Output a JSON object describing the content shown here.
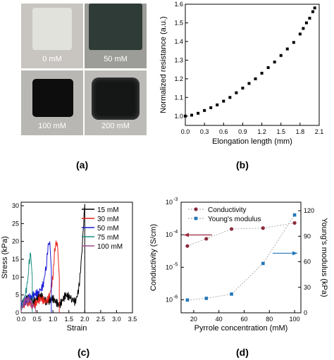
{
  "panels": {
    "a": {
      "label": "(a)",
      "photos": [
        {
          "caption": "0 mM",
          "bg": "#c8c5c1",
          "sample": "#e4e4e0"
        },
        {
          "caption": "50 mM",
          "bg": "#9c9d98",
          "sample": "#2f3b36"
        },
        {
          "caption": "100 mM",
          "bg": "#b9b7b3",
          "sample": "#0c0d0c"
        },
        {
          "caption": "200 mM",
          "bg": "#bdbbb7",
          "sample": "#151616"
        }
      ]
    },
    "b": {
      "label": "(b)"
    },
    "c": {
      "label": "(c)"
    },
    "d": {
      "label": "(d)"
    }
  },
  "chart_data": [
    {
      "id": "b",
      "type": "scatter",
      "title": "",
      "xlabel": "Elongation length (mm)",
      "ylabel": "Normalized resistance (a.u.)",
      "xlim": [
        0.0,
        2.1
      ],
      "ylim": [
        0.95,
        1.6
      ],
      "xticks": [
        "0.0",
        "0.3",
        "0.6",
        "0.9",
        "1.2",
        "1.5",
        "1.8",
        "2.1"
      ],
      "yticks": [
        "1.0",
        "1.1",
        "1.2",
        "1.3",
        "1.4",
        "1.5",
        "1.6"
      ],
      "marker": "square",
      "color": "#000000",
      "x": [
        0.0,
        0.1,
        0.2,
        0.3,
        0.4,
        0.5,
        0.6,
        0.7,
        0.8,
        0.9,
        1.0,
        1.1,
        1.2,
        1.3,
        1.4,
        1.5,
        1.6,
        1.7,
        1.8,
        1.85,
        1.9,
        1.95,
        2.0,
        2.03
      ],
      "y": [
        1.0,
        1.005,
        1.015,
        1.03,
        1.045,
        1.06,
        1.08,
        1.1,
        1.125,
        1.15,
        1.175,
        1.2,
        1.23,
        1.26,
        1.29,
        1.325,
        1.36,
        1.395,
        1.44,
        1.47,
        1.5,
        1.525,
        1.56,
        1.58
      ]
    },
    {
      "id": "c",
      "type": "line",
      "title": "",
      "xlabel": "Strain",
      "ylabel": "Stress (kPa)",
      "xlim": [
        0.0,
        3.5
      ],
      "ylim": [
        0,
        31
      ],
      "xticks": [
        "0.0",
        "0.5",
        "1.0",
        "1.5",
        "2.0",
        "2.5",
        "3.0",
        "3.5"
      ],
      "yticks": [
        "0",
        "5",
        "10",
        "15",
        "20",
        "25",
        "30"
      ],
      "legend_position": "top-right",
      "series": [
        {
          "name": "15 mM",
          "color": "#000000",
          "x": [
            0.0,
            0.2,
            0.4,
            0.6,
            0.8,
            1.0,
            1.2,
            1.4,
            1.6,
            1.7,
            1.8,
            1.85,
            1.9,
            1.95,
            1.98,
            2.0,
            2.0
          ],
          "y": [
            2,
            4,
            3,
            5,
            3,
            4,
            2,
            5,
            4,
            3,
            6,
            10,
            16,
            22,
            28,
            30.5,
            0
          ]
        },
        {
          "name": "30 mM",
          "color": "#e8221a",
          "x": [
            0.0,
            0.2,
            0.4,
            0.6,
            0.8,
            0.9,
            1.0,
            1.05,
            1.1,
            1.15,
            1.2,
            1.2
          ],
          "y": [
            2,
            3,
            2,
            4,
            3,
            5,
            10,
            17,
            20,
            18,
            10,
            0
          ]
        },
        {
          "name": "50 mM",
          "color": "#1a1adb",
          "x": [
            0.0,
            0.2,
            0.4,
            0.6,
            0.7,
            0.8,
            0.85,
            0.9,
            0.95,
            0.95
          ],
          "y": [
            2,
            4,
            5,
            6,
            8,
            14,
            19,
            20,
            12,
            0
          ]
        },
        {
          "name": "75 mM",
          "color": "#1a8f82",
          "x": [
            0.0,
            0.1,
            0.2,
            0.25,
            0.3,
            0.35,
            0.35
          ],
          "y": [
            1,
            4,
            8,
            14,
            16.5,
            10,
            0
          ]
        },
        {
          "name": "100 mM",
          "color": "#9c4a8c",
          "x": [
            0.0,
            0.05,
            0.1,
            0.15,
            0.2,
            0.25,
            0.3,
            0.35,
            0.4,
            0.45,
            0.45
          ],
          "y": [
            1,
            2,
            3,
            4,
            3,
            4,
            3,
            2,
            2,
            1,
            0
          ]
        }
      ]
    },
    {
      "id": "d",
      "type": "scatter",
      "title": "",
      "xlabel": "Pyrrole concentration (mM)",
      "ylabel": "Conductivity (S/cm)",
      "ylabel_right": "Young's modulus (kPa)",
      "xlim": [
        10,
        105
      ],
      "ylim_log": [
        -6.4,
        -3
      ],
      "ylim_right": [
        0,
        130
      ],
      "xticks": [
        "20",
        "40",
        "60",
        "80",
        "100"
      ],
      "yticks": [
        "10",
        "10",
        "10",
        "10"
      ],
      "ytick_exponents": [
        "-6",
        "-5",
        "-4",
        "-3"
      ],
      "yticks_right": [
        "0",
        "30",
        "60",
        "90",
        "120"
      ],
      "legend_position": "top-left",
      "series": [
        {
          "name": "Conductivity",
          "axis": "left",
          "color": "#8b2a3a",
          "marker": "circle",
          "x": [
            15,
            30,
            50,
            75,
            100
          ],
          "y": [
            4.5e-05,
            7.5e-05,
            0.00015,
            0.00016,
            0.00023
          ]
        },
        {
          "name": "Young's modulus",
          "axis": "right",
          "color": "#2277bb",
          "marker": "square",
          "x": [
            15,
            30,
            50,
            75,
            100
          ],
          "y": [
            15,
            17,
            22,
            58,
            115
          ]
        }
      ]
    }
  ]
}
